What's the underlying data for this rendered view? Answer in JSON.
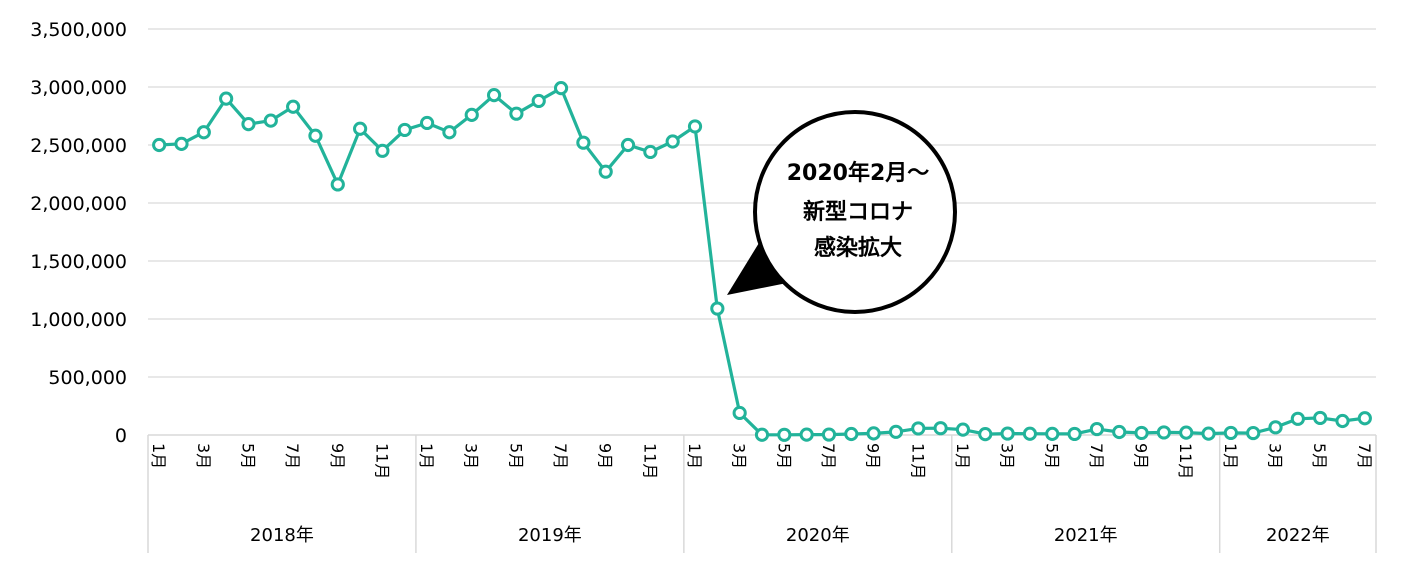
{
  "chart_data": {
    "type": "line",
    "title": "",
    "xlabel": "",
    "ylabel": "",
    "ylim": [
      0,
      3500000
    ],
    "y_ticks": [
      0,
      500000,
      1000000,
      1500000,
      2000000,
      2500000,
      3000000,
      3500000
    ],
    "y_tick_labels": [
      "0",
      "500,000",
      "1,000,000",
      "1,500,000",
      "2,000,000",
      "2,500,000",
      "3,000,000",
      "3,500,000"
    ],
    "grid": true,
    "line_color": "#22b39a",
    "years": [
      {
        "label": "2018年",
        "months": 12
      },
      {
        "label": "2019年",
        "months": 12
      },
      {
        "label": "2020年",
        "months": 12
      },
      {
        "label": "2021年",
        "months": 12
      },
      {
        "label": "2022年",
        "months": 7
      }
    ],
    "month_labels": [
      "1月",
      "3月",
      "5月",
      "7月",
      "9月",
      "11月"
    ],
    "series": [
      {
        "values": [
          2500000,
          2510000,
          2610000,
          2900000,
          2680000,
          2710000,
          2830000,
          2580000,
          2160000,
          2640000,
          2450000,
          2630000,
          2690000,
          2610000,
          2760000,
          2930000,
          2770000,
          2880000,
          2990000,
          2520000,
          2270000,
          2500000,
          2440000,
          2530000,
          2660000,
          1090000,
          190000,
          2000,
          1700,
          3500,
          3800,
          8700,
          13700,
          27400,
          56700,
          58700,
          46500,
          7400,
          12300,
          10900,
          10000,
          9300,
          51100,
          25900,
          17700,
          22100,
          20700,
          12100,
          17800,
          16700,
          66100,
          139500,
          147000,
          120400,
          144500
        ]
      }
    ],
    "annotation": {
      "lines": [
        "2020年2月～",
        "新型コロナ",
        "感染拡大"
      ]
    }
  }
}
